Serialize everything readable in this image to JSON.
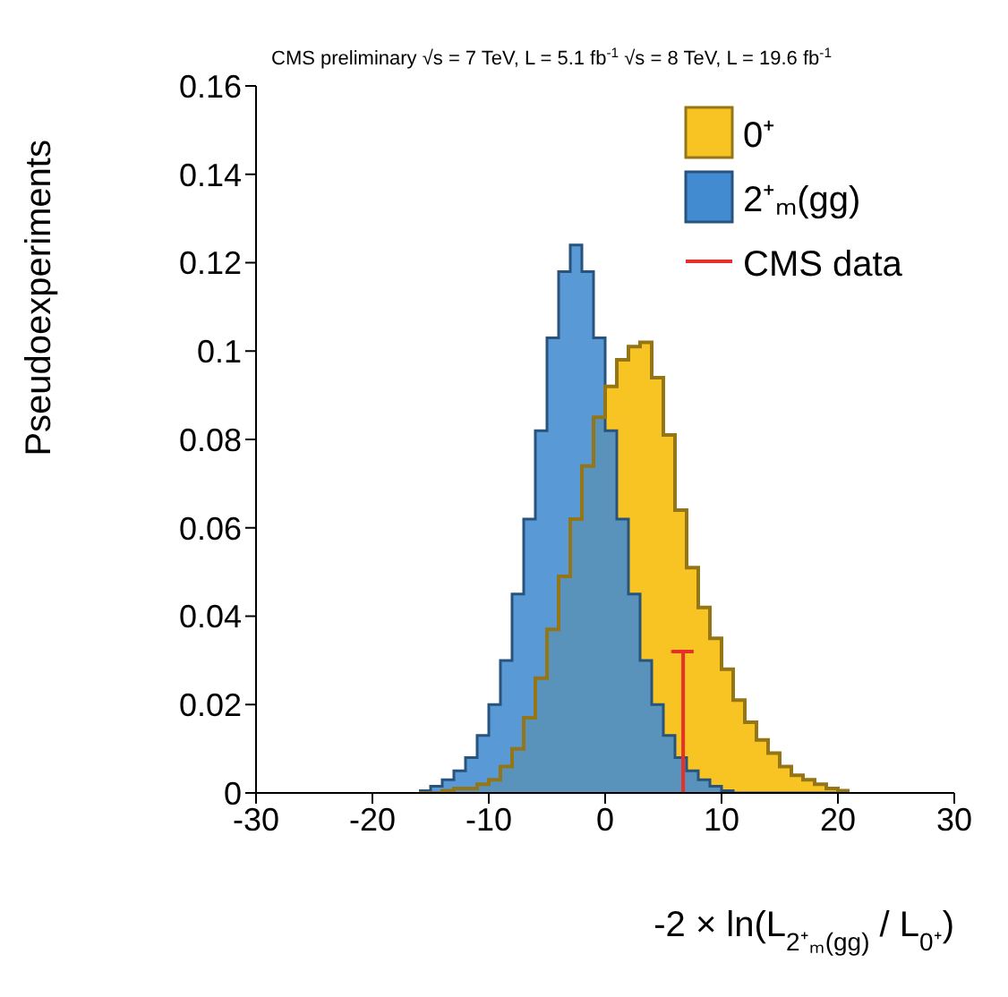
{
  "chart_data": {
    "type": "histogram",
    "title": "CMS preliminary    √s = 7 TeV, L = 5.1 fb$^{-1}$   √s = 8 TeV, L = 19.6 fb$^{-1}$",
    "xlabel": "-2 × ln(L$_{2⁺ₘ(gg)}$ / L$_{0⁺}$)",
    "ylabel": "Pseudoexperiments",
    "bins": [
      -16,
      -15,
      -14,
      -13,
      -12,
      -11,
      -10,
      -9,
      -8,
      -7,
      -6,
      -5,
      -4,
      -3,
      -2,
      -1,
      0,
      1,
      2,
      3,
      4,
      5,
      6,
      7,
      8,
      9,
      10,
      11,
      12,
      13,
      14,
      15,
      16,
      17,
      18,
      19,
      20,
      21
    ],
    "series": [
      {
        "name": "0⁺",
        "color": "#f8c424",
        "values": [
          0,
          0,
          0.0005,
          0.001,
          0.001,
          0.002,
          0.003,
          0.006,
          0.01,
          0.017,
          0.026,
          0.037,
          0.049,
          0.062,
          0.074,
          0.085,
          0.092,
          0.098,
          0.101,
          0.102,
          0.094,
          0.081,
          0.064,
          0.051,
          0.042,
          0.035,
          0.028,
          0.021,
          0.016,
          0.012,
          0.009,
          0.006,
          0.004,
          0.003,
          0.002,
          0.001,
          0.0005
        ]
      },
      {
        "name": "2⁺ₘ(gg)",
        "color": "#428bd0",
        "values": [
          0.0005,
          0.0015,
          0.003,
          0.005,
          0.008,
          0.013,
          0.02,
          0.03,
          0.045,
          0.062,
          0.082,
          0.103,
          0.118,
          0.124,
          0.118,
          0.103,
          0.082,
          0.062,
          0.045,
          0.03,
          0.02,
          0.013,
          0.008,
          0.005,
          0.003,
          0.0015,
          0.0005,
          0,
          0,
          0,
          0,
          0,
          0,
          0,
          0,
          0,
          0
        ]
      },
      {
        "name": "CMS data",
        "type": "line",
        "color": "#e8302a",
        "x": [
          6.7,
          6.7,
          5.8,
          7.6
        ],
        "values": [
          0,
          0.032,
          0.032,
          0.032
        ]
      }
    ],
    "xlim": [
      -30,
      30
    ],
    "xticks": [
      -30,
      -20,
      -10,
      0,
      10,
      20,
      30
    ],
    "ylim": [
      0,
      0.16
    ],
    "yticks": [
      0,
      0.02,
      0.04,
      0.06,
      0.08,
      0.1,
      0.12,
      0.14,
      0.16
    ],
    "grid": false,
    "legend": "top right"
  }
}
